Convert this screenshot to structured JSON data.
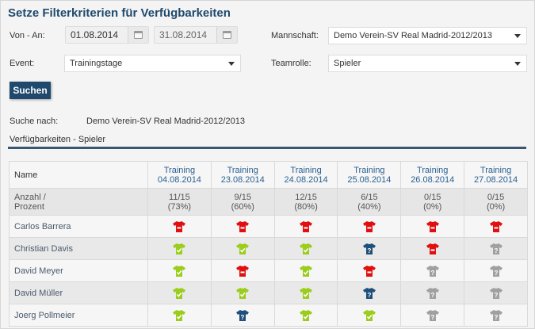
{
  "title": "Setze Filterkriterien für Verfügbarkeiten",
  "filters": {
    "date_label": "Von - An:",
    "date_from": "01.08.2014",
    "date_to": "31.08.2014",
    "event_label": "Event:",
    "event_value": "Trainingstage",
    "team_label": "Mannschaft:",
    "team_value": "Demo Verein-SV Real Madrid-2012/2013",
    "role_label": "Teamrolle:",
    "role_value": "Spieler",
    "search_button": "Suchen"
  },
  "search_info": {
    "label": "Suche nach:",
    "value": "Demo Verein-SV Real Madrid-2012/2013"
  },
  "section_title": "Verfügbarkeiten - Spieler",
  "colors": {
    "available": "#9acd1c",
    "unavailable": "#e01010",
    "unsure": "#1f4f7a",
    "no_answer": "#a0a0a0"
  },
  "table": {
    "name_header": "Name",
    "count_label_1": "Anzahl /",
    "count_label_2": "Prozent",
    "columns": [
      {
        "line1": "Training",
        "line2": "04.08.2014",
        "count": "11/15",
        "pct": "(73%)"
      },
      {
        "line1": "Training",
        "line2": "23.08.2014",
        "count": "9/15",
        "pct": "(60%)"
      },
      {
        "line1": "Training",
        "line2": "24.08.2014",
        "count": "12/15",
        "pct": "(80%)"
      },
      {
        "line1": "Training",
        "line2": "25.08.2014",
        "count": "6/15",
        "pct": "(40%)"
      },
      {
        "line1": "Training",
        "line2": "26.08.2014",
        "count": "0/15",
        "pct": "(0%)"
      },
      {
        "line1": "Training",
        "line2": "27.08.2014",
        "count": "0/15",
        "pct": "(0%)"
      }
    ],
    "rows": [
      {
        "name": "Carlos Barrera",
        "status": [
          "unavailable",
          "unavailable",
          "unavailable",
          "unavailable",
          "unavailable",
          "unavailable"
        ]
      },
      {
        "name": "Christian Davis",
        "status": [
          "available",
          "available",
          "available",
          "unsure",
          "unavailable",
          "no_answer"
        ]
      },
      {
        "name": "David Meyer",
        "status": [
          "available",
          "unavailable",
          "available",
          "unavailable",
          "no_answer",
          "no_answer"
        ]
      },
      {
        "name": "David Müller",
        "status": [
          "available",
          "available",
          "available",
          "unsure",
          "no_answer",
          "no_answer"
        ]
      },
      {
        "name": "Joerg Pollmeier",
        "status": [
          "available",
          "unsure",
          "available",
          "available",
          "no_answer",
          "no_answer"
        ]
      }
    ]
  }
}
